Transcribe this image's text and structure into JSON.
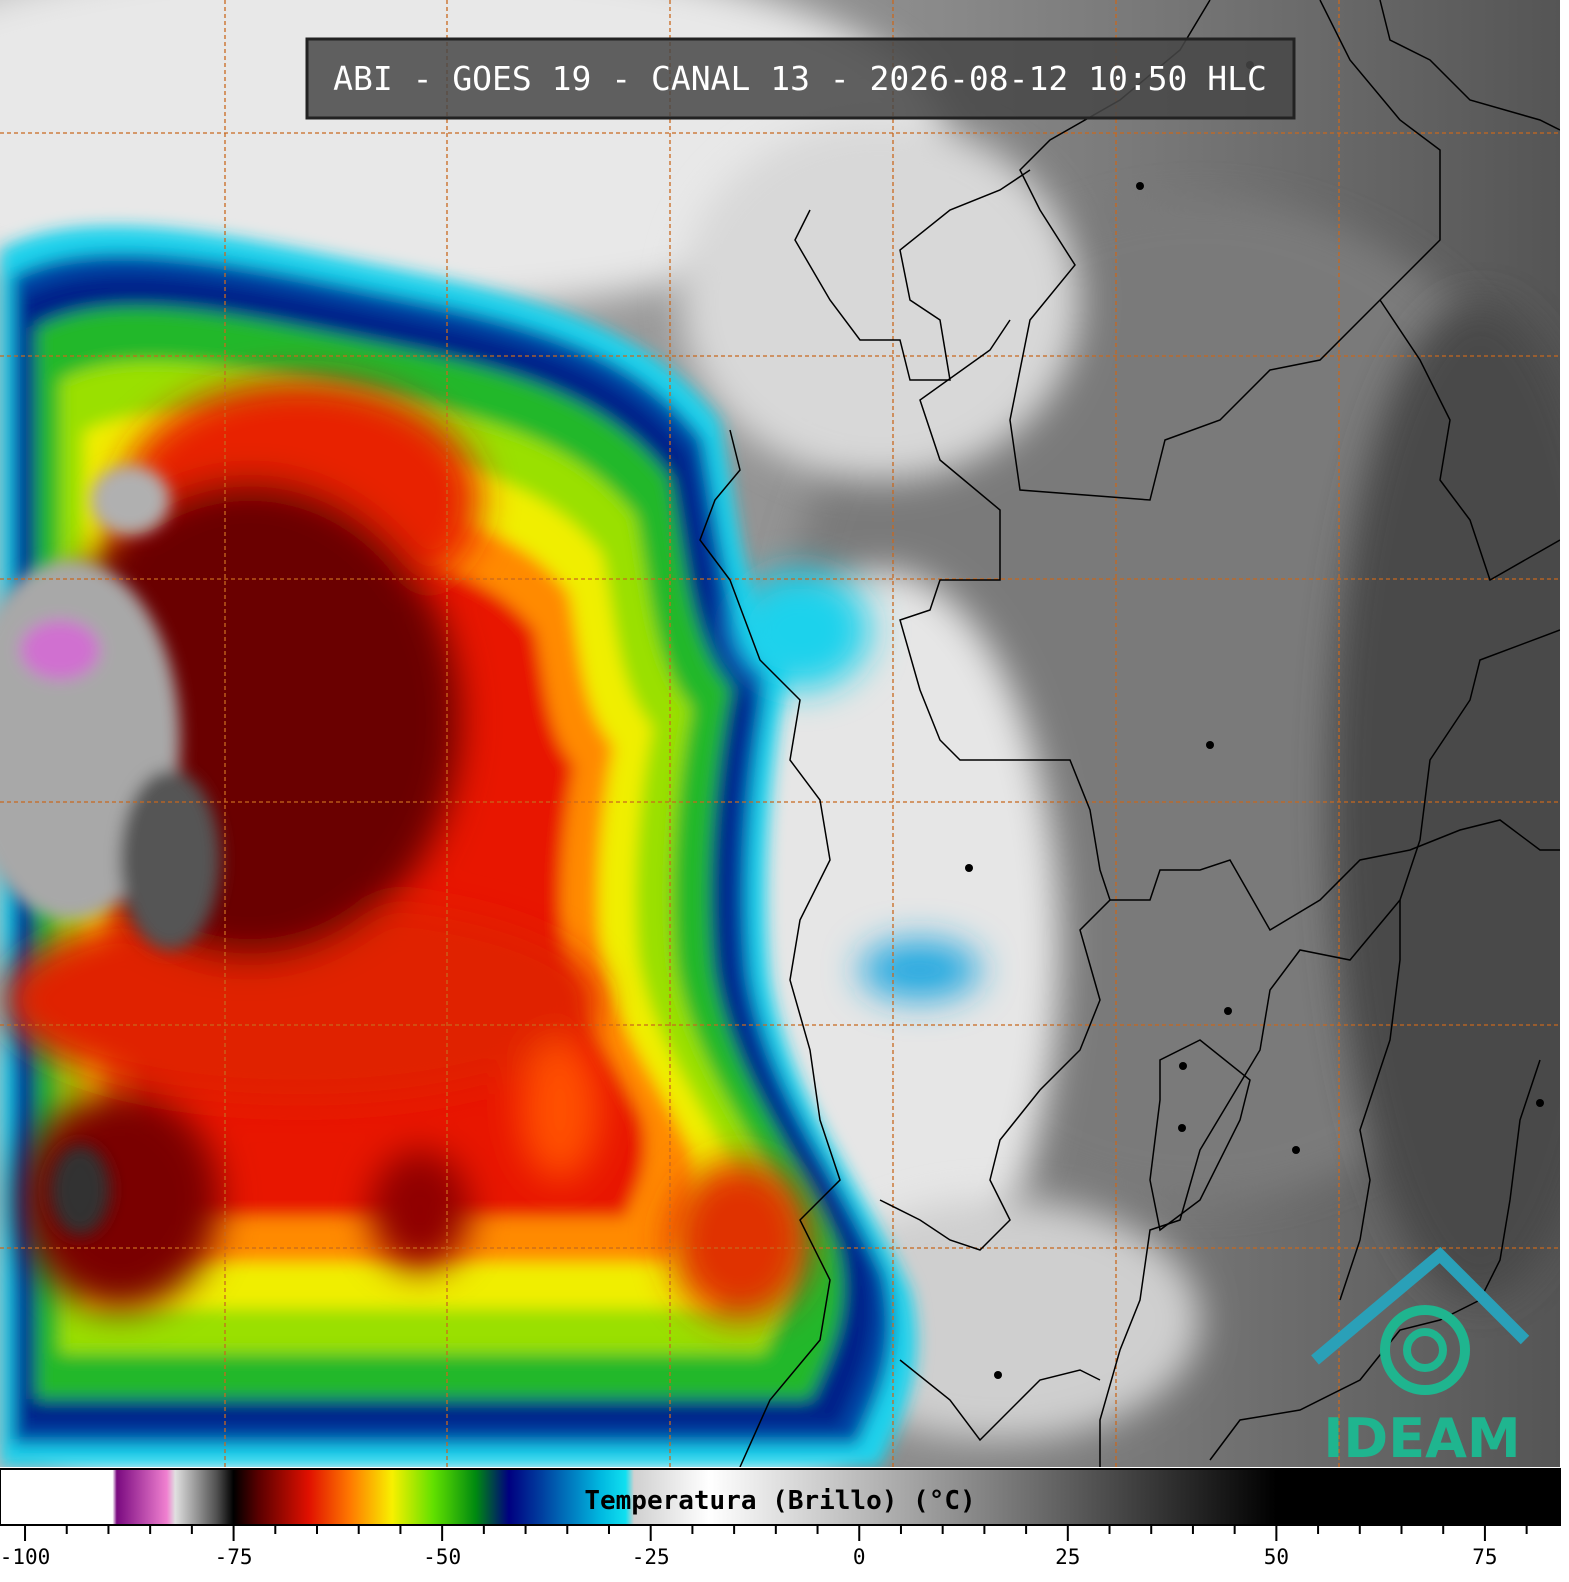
{
  "header": {
    "title": "ABI - GOES 19 - CANAL 13 - 2026-08-12 10:50 HLC"
  },
  "colorbar": {
    "label": "Temperatura (Brillo) (°C)",
    "xlim": [
      -103,
      84
    ],
    "xticks": [
      -100,
      -75,
      -50,
      -25,
      0,
      25,
      50,
      75
    ],
    "xticks_minor": [
      -95,
      -90,
      -85,
      -80,
      -70,
      -65,
      -60,
      -55,
      -45,
      -40,
      -35,
      -30,
      -20,
      -15,
      -10,
      -5,
      5,
      10,
      15,
      20,
      30,
      35,
      40,
      45,
      55,
      60,
      65,
      70,
      80
    ],
    "stops": [
      {
        "value": -103,
        "color": "#ffffff"
      },
      {
        "value": -89.5,
        "color": "#ffffff"
      },
      {
        "value": -89,
        "color": "#7a0a80"
      },
      {
        "value": -83,
        "color": "#f080d0"
      },
      {
        "value": -82,
        "color": "#e0e0e0"
      },
      {
        "value": -77,
        "color": "#505050"
      },
      {
        "value": -75,
        "color": "#000000"
      },
      {
        "value": -72,
        "color": "#5a0000"
      },
      {
        "value": -66,
        "color": "#e01000"
      },
      {
        "value": -61,
        "color": "#ff7a00"
      },
      {
        "value": -56,
        "color": "#f8f000"
      },
      {
        "value": -51,
        "color": "#60e000"
      },
      {
        "value": -46,
        "color": "#008a10"
      },
      {
        "value": -42,
        "color": "#000080"
      },
      {
        "value": -38,
        "color": "#0040a0"
      },
      {
        "value": -31,
        "color": "#00b8e0"
      },
      {
        "value": -28,
        "color": "#10e0f0"
      },
      {
        "value": -27,
        "color": "#d0d0d0"
      },
      {
        "value": -18,
        "color": "#ffffff"
      },
      {
        "value": 50,
        "color": "#000000"
      },
      {
        "value": 84,
        "color": "#000000"
      }
    ]
  },
  "logo": {
    "text": "IDEAM"
  }
}
